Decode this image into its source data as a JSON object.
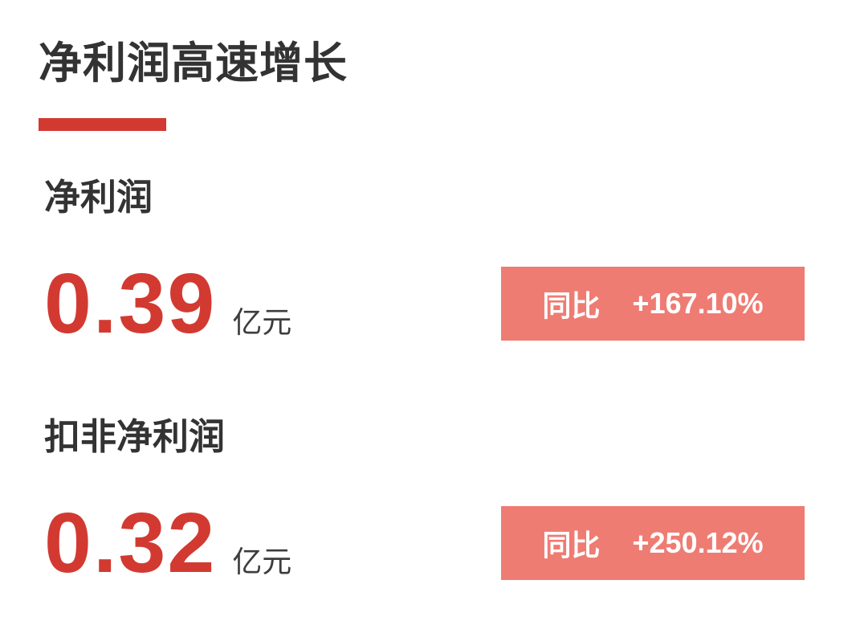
{
  "header": {
    "title": "净利润高速增长"
  },
  "metrics": [
    {
      "label": "净利润",
      "value": "0.39",
      "unit": "亿元",
      "badge_label": "同比",
      "badge_value": "+167.10%"
    },
    {
      "label": "扣非净利润",
      "value": "0.32",
      "unit": "亿元",
      "badge_label": "同比",
      "badge_value": "+250.12%"
    }
  ],
  "colors": {
    "accent_red": "#d23a31",
    "badge_bg": "#ee7c73",
    "text_dark": "#333333",
    "unit_gray": "#3d3d3d"
  }
}
